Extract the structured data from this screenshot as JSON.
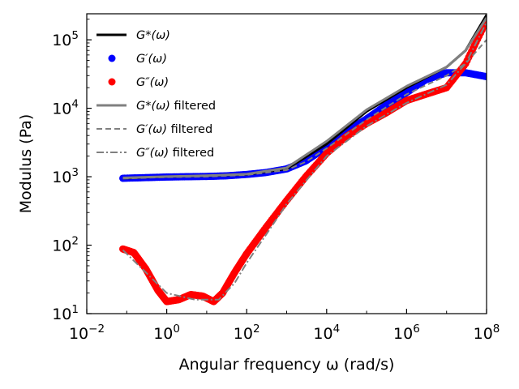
{
  "chart_data": {
    "type": "scatter",
    "x_scale": "log",
    "y_scale": "log",
    "xlim": [
      0.01,
      100000000
    ],
    "ylim": [
      10,
      240000
    ],
    "xlabel": "Angular frequency ω (rad/s)",
    "ylabel": "Modulus (Pa)",
    "grid": false,
    "legend_position": "top-left",
    "x_ticks": [
      {
        "value": 0.01,
        "base": "10",
        "exp": "−2"
      },
      {
        "value": 1,
        "base": "10",
        "exp": "0"
      },
      {
        "value": 100,
        "base": "10",
        "exp": "2"
      },
      {
        "value": 10000,
        "base": "10",
        "exp": "4"
      },
      {
        "value": 1000000,
        "base": "10",
        "exp": "6"
      },
      {
        "value": 100000000,
        "base": "10",
        "exp": "8"
      }
    ],
    "y_ticks": [
      {
        "value": 10,
        "base": "10",
        "exp": "1"
      },
      {
        "value": 100,
        "base": "10",
        "exp": "2"
      },
      {
        "value": 1000,
        "base": "10",
        "exp": "3"
      },
      {
        "value": 10000,
        "base": "10",
        "exp": "4"
      },
      {
        "value": 100000,
        "base": "10",
        "exp": "5"
      }
    ],
    "series": [
      {
        "name": "G*(ω)",
        "name_main": "G*(ω)",
        "name_suffix": "",
        "kind": "line",
        "color": "#000000",
        "width": 3,
        "dash": "",
        "x": [
          0.08,
          0.3,
          1,
          10,
          100,
          1000,
          10000,
          100000,
          1000000,
          10000000,
          30000000,
          100000000
        ],
        "y": [
          950,
          980,
          1000,
          1030,
          1080,
          1300,
          3000,
          9000,
          20000,
          40000,
          70000,
          230000
        ]
      },
      {
        "name": "G′(ω)",
        "name_main": "G′(ω)",
        "name_suffix": "",
        "kind": "points",
        "color": "#0000ff",
        "size": 4.5,
        "x": [
          0.08,
          0.3,
          1,
          3,
          10,
          30,
          100,
          300,
          1000,
          3000,
          10000,
          30000,
          100000,
          300000,
          1000000,
          3000000,
          10000000,
          30000000,
          100000000
        ],
        "y": [
          950,
          970,
          990,
          1000,
          1010,
          1030,
          1080,
          1150,
          1300,
          1700,
          2700,
          4500,
          7000,
          11000,
          17000,
          26000,
          33000,
          33000,
          29000
        ]
      },
      {
        "name": "G″(ω)",
        "name_main": "G″(ω)",
        "name_suffix": "",
        "kind": "points",
        "color": "#ff0000",
        "size": 4.5,
        "x": [
          0.08,
          0.15,
          0.3,
          0.6,
          1,
          2,
          4,
          8,
          15,
          25,
          50,
          100,
          300,
          1000,
          3000,
          10000,
          30000,
          100000,
          300000,
          1000000,
          3000000,
          10000000,
          30000000,
          100000000
        ],
        "y": [
          88,
          78,
          45,
          22,
          15,
          16,
          19,
          18,
          15,
          20,
          40,
          75,
          180,
          450,
          1000,
          2200,
          3800,
          6000,
          8500,
          13000,
          16000,
          20000,
          45000,
          190000
        ]
      },
      {
        "name": "G*(ω) filtered",
        "name_main": "G*(ω)",
        "name_suffix": " filtered",
        "kind": "line",
        "color": "#808080",
        "width": 3,
        "dash": "",
        "x": [
          0.08,
          0.3,
          1,
          10,
          100,
          1000,
          10000,
          100000,
          1000000,
          10000000,
          30000000,
          100000000
        ],
        "y": [
          960,
          985,
          1005,
          1035,
          1090,
          1350,
          3300,
          9500,
          21000,
          40000,
          70000,
          210000
        ]
      },
      {
        "name": "G′(ω) filtered",
        "name_main": "G′(ω)",
        "name_suffix": " filtered",
        "kind": "line",
        "color": "#808080",
        "width": 2,
        "dash": "7 4",
        "x": [
          0.08,
          1,
          10,
          100,
          1000,
          3000,
          10000,
          100000,
          1000000,
          10000000,
          30000000,
          100000000
        ],
        "y": [
          940,
          985,
          1005,
          1060,
          1250,
          1650,
          2600,
          6800,
          16000,
          30000,
          45000,
          100000
        ]
      },
      {
        "name": "G″(ω) filtered",
        "name_main": "G″(ω)",
        "name_suffix": " filtered",
        "kind": "line",
        "color": "#808080",
        "width": 2,
        "dash": "9 3 2 3",
        "x": [
          0.08,
          0.3,
          1,
          5,
          20,
          50,
          100,
          300,
          1000,
          10000,
          100000,
          1000000,
          10000000,
          30000000,
          100000000
        ],
        "y": [
          85,
          40,
          20,
          16,
          16,
          28,
          55,
          140,
          400,
          2000,
          5500,
          12000,
          22000,
          45000,
          180000
        ]
      }
    ]
  }
}
